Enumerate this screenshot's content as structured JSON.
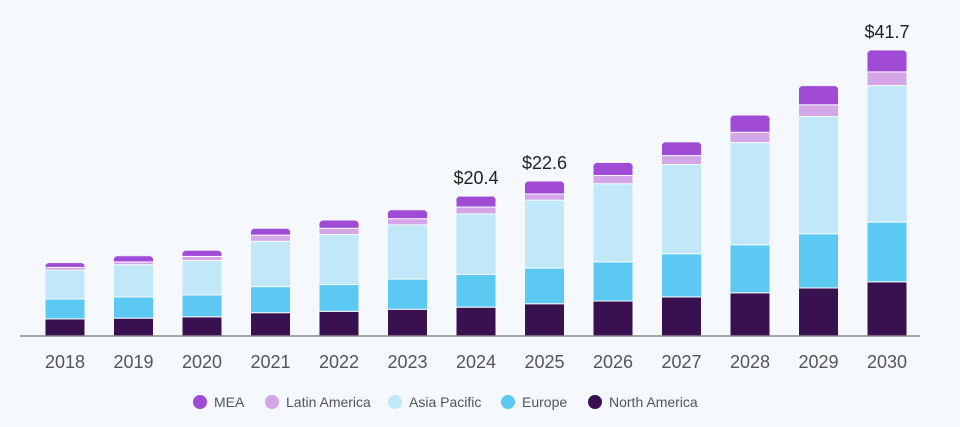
{
  "chart_data": {
    "type": "bar",
    "stacked": true,
    "title": "",
    "xlabel": "",
    "ylabel": "",
    "ylim": [
      0,
      45
    ],
    "grid": false,
    "legend_position": "bottom-center",
    "categories": [
      "2018",
      "2019",
      "2020",
      "2021",
      "2022",
      "2023",
      "2024",
      "2025",
      "2026",
      "2027",
      "2028",
      "2029",
      "2030"
    ],
    "series": [
      {
        "name": "North America",
        "color": "#3a1150",
        "values": [
          2.5,
          2.6,
          2.8,
          3.4,
          3.6,
          3.9,
          4.2,
          4.7,
          5.1,
          5.7,
          6.3,
          7.0,
          7.9
        ]
      },
      {
        "name": "Europe",
        "color": "#5bc9f2",
        "values": [
          2.9,
          3.1,
          3.2,
          3.8,
          3.9,
          4.4,
          4.8,
          5.2,
          5.7,
          6.3,
          7.0,
          7.9,
          8.7
        ]
      },
      {
        "name": "Asia Pacific",
        "color": "#c1e8f8",
        "values": [
          4.2,
          4.7,
          5.0,
          6.6,
          7.3,
          7.9,
          8.8,
          9.9,
          11.4,
          13.0,
          14.9,
          17.1,
          19.9
        ]
      },
      {
        "name": "Latin America",
        "color": "#d4a6e8",
        "values": [
          0.4,
          0.4,
          0.6,
          0.9,
          0.9,
          0.9,
          1.0,
          0.9,
          1.2,
          1.3,
          1.5,
          1.7,
          2.0
        ]
      },
      {
        "name": "MEA",
        "color": "#a04bd6",
        "values": [
          0.7,
          0.9,
          0.9,
          1.0,
          1.2,
          1.3,
          1.6,
          1.9,
          1.9,
          2.0,
          2.5,
          2.8,
          3.2
        ]
      }
    ],
    "annotations": [
      {
        "category": "2024",
        "text": "$20.4"
      },
      {
        "category": "2025",
        "text": "$22.6"
      },
      {
        "category": "2030",
        "text": "$41.7"
      }
    ],
    "legend_order": [
      "MEA",
      "Latin America",
      "Asia Pacific",
      "Europe",
      "North America"
    ]
  }
}
